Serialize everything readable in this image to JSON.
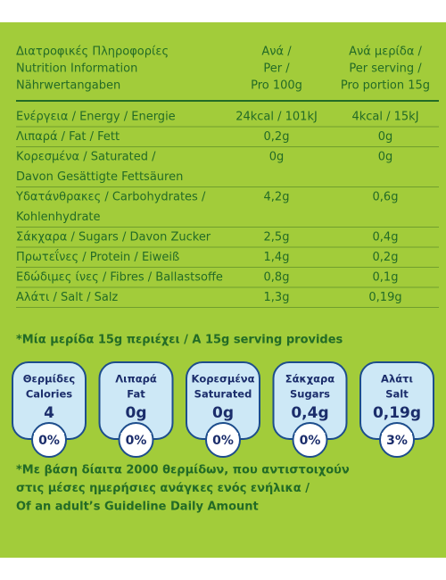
{
  "header": {
    "columns": [
      [
        "Διατροφικές Πληροφορίες",
        "Nutrition Information",
        "Nährwertangaben"
      ],
      [
        "Ανά /",
        "Per /",
        "Pro 100g"
      ],
      [
        "Ανά μερίδα /",
        "Per serving /",
        "Pro portion 15g"
      ]
    ]
  },
  "table": {
    "rows": [
      {
        "label_lines": [
          "Ενέργεια / Energy / Energie"
        ],
        "per_100g": "24kcal / 101kJ",
        "per_serving": "4kcal / 15kJ"
      },
      {
        "label_lines": [
          "Λιπαρά / Fat / Fett"
        ],
        "per_100g": "0,2g",
        "per_serving": "0g"
      },
      {
        "label_lines": [
          "Κορεσμένα / Saturated /",
          "Davon Gesättigte Fettsäuren"
        ],
        "per_100g": "0g",
        "per_serving": "0g"
      },
      {
        "label_lines": [
          "Υδατάνθρακες / Carbohydrates /",
          "Kohlenhydrate"
        ],
        "per_100g": "4,2g",
        "per_serving": "0,6g"
      },
      {
        "label_lines": [
          "Σάκχαρα / Sugars / Davon Zucker"
        ],
        "per_100g": "2,5g",
        "per_serving": "0,4g"
      },
      {
        "label_lines": [
          "Πρωτεΐνες / Protein / Eiweiß"
        ],
        "per_100g": "1,4g",
        "per_serving": "0,2g"
      },
      {
        "label_lines": [
          "Εδώδιμες ίνες / Fibres / Ballastsoffe"
        ],
        "per_100g": "0,8g",
        "per_serving": "0,1g"
      },
      {
        "label_lines": [
          "Αλάτι / Salt / Salz"
        ],
        "per_100g": "1,3g",
        "per_serving": "0,19g"
      }
    ]
  },
  "serving_note": "*Μία μερίδα 15g περιέχει / A 15g serving provides",
  "badges": [
    {
      "label_lines": [
        "Θερμίδες",
        "Calories"
      ],
      "amount": "4",
      "percent": "0%"
    },
    {
      "label_lines": [
        "Λιπαρά",
        "Fat"
      ],
      "amount": "0g",
      "percent": "0%"
    },
    {
      "label_lines": [
        "Κορεσμένα",
        "Saturated"
      ],
      "amount": "0g",
      "percent": "0%"
    },
    {
      "label_lines": [
        "Σάκχαρα",
        "Sugars"
      ],
      "amount": "0,4g",
      "percent": "0%"
    },
    {
      "label_lines": [
        "Αλάτι",
        "Salt"
      ],
      "amount": "0,19g",
      "percent": "3%"
    }
  ],
  "footnote_lines": [
    "*Με βάση δίαιτα 2000 θερμίδων, που αντιστοιχούν",
    "στις μέσες ημερήσιες ανάγκες ενός ενήλικα /",
    "Of an adult’s Guideline Daily Amount"
  ]
}
